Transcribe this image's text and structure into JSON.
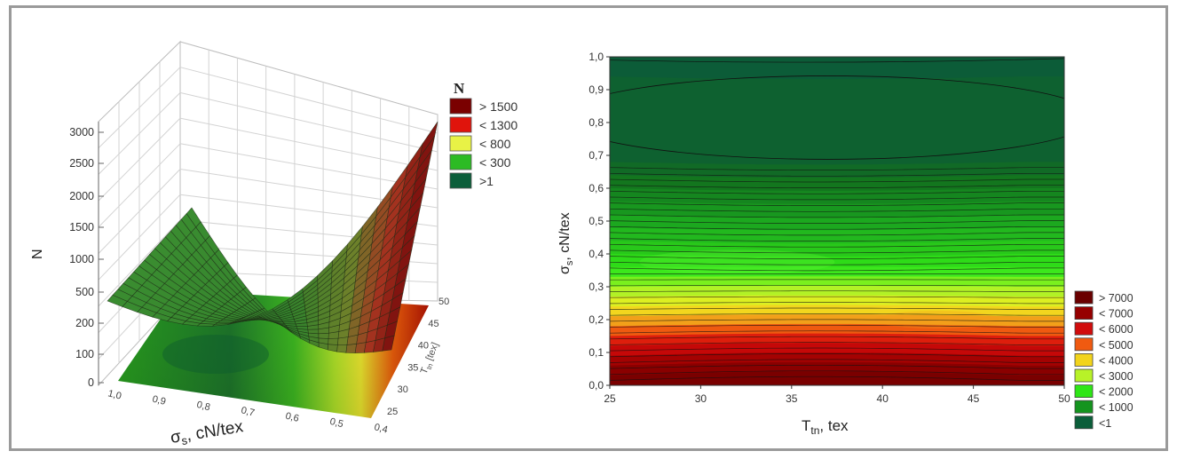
{
  "chart_data": [
    {
      "type": "surface",
      "zlabel": "N",
      "xlabel": "σ",
      "xlabel_sub": "s",
      "xlabel_rest": ", cN/tex",
      "ylabel": "T",
      "ylabel_sub": "tn",
      "ylabel_rest": " [tex]",
      "z_ticks": [
        "3000",
        "2500",
        "2000",
        "1500",
        "1000",
        "500",
        "200",
        "100",
        "0"
      ],
      "x_ticks": [
        "1,0",
        "0,9",
        "0,8",
        "0,7",
        "0,6",
        "0,5",
        "0,4"
      ],
      "y_ticks": [
        "25",
        "30",
        "35",
        "40",
        "45",
        "50"
      ],
      "xlim": [
        0.4,
        1.0
      ],
      "ylim": [
        25,
        50
      ],
      "zlim": [
        0,
        3000
      ],
      "legend": {
        "title": "N",
        "items": [
          {
            "label": "> 1500",
            "color": "#7a0000"
          },
          {
            "label": "< 1300",
            "color": "#e0140c"
          },
          {
            "label": "< 800",
            "color": "#e8f246"
          },
          {
            "label": "< 300",
            "color": "#2cbb24"
          },
          {
            "label": ">1",
            "color": "#0b5e3a"
          }
        ]
      }
    },
    {
      "type": "contour",
      "xlabel": "T",
      "xlabel_sub": "tn",
      "xlabel_rest": ", tex",
      "ylabel": "σ",
      "ylabel_sub": "s",
      "ylabel_rest": ", cN/tex",
      "x_ticks": [
        "25",
        "30",
        "35",
        "40",
        "45",
        "50"
      ],
      "y_ticks": [
        "0,0",
        "0,1",
        "0,2",
        "0,3",
        "0,4",
        "0,5",
        "0,6",
        "0,7",
        "0,8",
        "0,9",
        "1,0"
      ],
      "xlim": [
        25,
        50
      ],
      "ylim": [
        0.0,
        1.0
      ],
      "legend": {
        "items": [
          {
            "label": "> 7000",
            "color": "#6a0000"
          },
          {
            "label": "< 7000",
            "color": "#960000"
          },
          {
            "label": "< 6000",
            "color": "#d10c0c"
          },
          {
            "label": "< 5000",
            "color": "#f05a10"
          },
          {
            "label": "< 4000",
            "color": "#f2d41c"
          },
          {
            "label": "< 3000",
            "color": "#b8f228"
          },
          {
            "label": "< 2000",
            "color": "#2ee616"
          },
          {
            "label": "< 1000",
            "color": "#14941e"
          },
          {
            "label": "<1",
            "color": "#0b5e3a"
          }
        ]
      }
    }
  ]
}
